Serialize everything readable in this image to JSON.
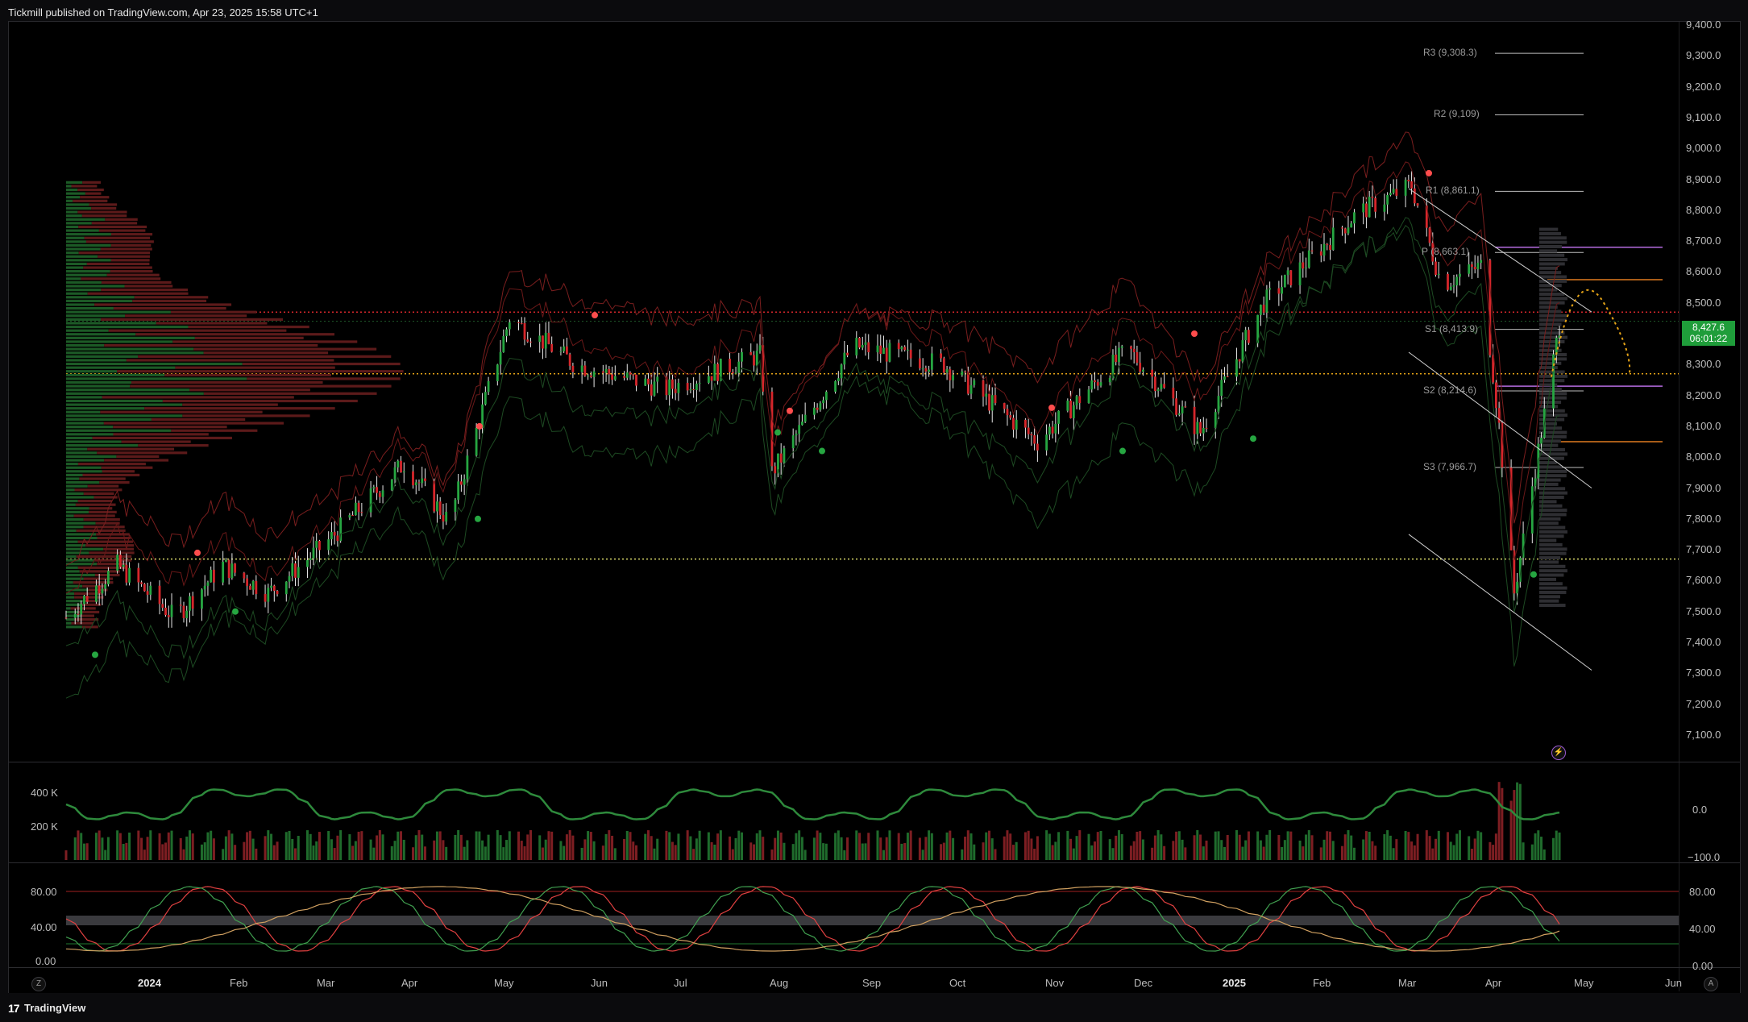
{
  "header": {
    "published_text": "Tickmill published on TradingView.com, Apr 23, 2025 15:58 UTC+1"
  },
  "footer": {
    "brand": "TradingView",
    "logo_icon": "tradingview-logo-icon"
  },
  "price_scale": {
    "labels": [
      "9,400.0",
      "9,300.0",
      "9,200.0",
      "9,100.0",
      "9,000.0",
      "8,900.0",
      "8,800.0",
      "8,700.0",
      "8,600.0",
      "8,500.0",
      "8,400.0",
      "8,300.0",
      "8,200.0",
      "8,100.0",
      "8,000.0",
      "7,900.0",
      "7,800.0",
      "7,700.0",
      "7,600.0",
      "7,500.0",
      "7,400.0",
      "7,300.0",
      "7,200.0",
      "7,100.0"
    ],
    "last_price": "8,427.6",
    "countdown": "06:01:22",
    "last_price_color": "#1f9d3a"
  },
  "pivots": [
    {
      "label": "R3 (9,308.3)",
      "value": 9308.3
    },
    {
      "label": "R2 (9,109)",
      "value": 9109
    },
    {
      "label": "R1 (8,861.1)",
      "value": 8861.1
    },
    {
      "label": "P (8,663.1)",
      "value": 8663.1
    },
    {
      "label": "S1 (8,413.9)",
      "value": 8413.9
    },
    {
      "label": "S2 (8,214.6)",
      "value": 8214.6
    },
    {
      "label": "S3 (7,966.7)",
      "value": 7966.7
    }
  ],
  "volume_pane": {
    "left_labels": [
      "400 K",
      "200 K"
    ],
    "right_labels": [
      "0.0",
      "−100.0"
    ]
  },
  "stoch_pane": {
    "left_labels": [
      "80.00",
      "40.00",
      "0.00"
    ],
    "right_labels": [
      "80.00",
      "40.00",
      "0.00"
    ]
  },
  "time_axis": {
    "labels": [
      {
        "text": "2024",
        "bold": true
      },
      {
        "text": "Feb",
        "bold": false
      },
      {
        "text": "Mar",
        "bold": false
      },
      {
        "text": "Apr",
        "bold": false
      },
      {
        "text": "May",
        "bold": false
      },
      {
        "text": "Jun",
        "bold": false
      },
      {
        "text": "Jul",
        "bold": false
      },
      {
        "text": "Aug",
        "bold": false
      },
      {
        "text": "Sep",
        "bold": false
      },
      {
        "text": "Oct",
        "bold": false
      },
      {
        "text": "Nov",
        "bold": false
      },
      {
        "text": "Dec",
        "bold": false
      },
      {
        "text": "2025",
        "bold": true
      },
      {
        "text": "Feb",
        "bold": false
      },
      {
        "text": "Mar",
        "bold": false
      },
      {
        "text": "Apr",
        "bold": false
      },
      {
        "text": "May",
        "bold": false
      },
      {
        "text": "Jun",
        "bold": false
      }
    ]
  },
  "buttons": {
    "zoom_left": "Z",
    "auto_scale": "A",
    "replay_icon": "lightning-icon"
  },
  "colors": {
    "up": "#26a641",
    "down": "#d6262b",
    "bg": "#000000",
    "pivot": "#cfcfcf",
    "dotted_orange": "#e6a417"
  },
  "chart_data": {
    "type": "candlestick",
    "x_range": [
      "2023-12-15",
      "2025-06-01"
    ],
    "y_range": [
      7050,
      9420
    ],
    "approx_closes": [
      {
        "date": "2023-12-15",
        "close": 7480
      },
      {
        "date": "2024-01-01",
        "close": 7650
      },
      {
        "date": "2024-01-20",
        "close": 7480
      },
      {
        "date": "2024-02-05",
        "close": 7650
      },
      {
        "date": "2024-02-20",
        "close": 7560
      },
      {
        "date": "2024-03-10",
        "close": 7720
      },
      {
        "date": "2024-04-05",
        "close": 7980
      },
      {
        "date": "2024-04-20",
        "close": 7790
      },
      {
        "date": "2024-05-10",
        "close": 8450
      },
      {
        "date": "2024-06-01",
        "close": 8300
      },
      {
        "date": "2024-07-01",
        "close": 8220
      },
      {
        "date": "2024-08-01",
        "close": 8330
      },
      {
        "date": "2024-08-05",
        "close": 7950
      },
      {
        "date": "2024-09-01",
        "close": 8360
      },
      {
        "date": "2024-10-01",
        "close": 8300
      },
      {
        "date": "2024-11-01",
        "close": 8050
      },
      {
        "date": "2024-12-01",
        "close": 8350
      },
      {
        "date": "2024-12-25",
        "close": 8080
      },
      {
        "date": "2025-01-15",
        "close": 8500
      },
      {
        "date": "2025-02-15",
        "close": 8790
      },
      {
        "date": "2025-03-05",
        "close": 8880
      },
      {
        "date": "2025-03-15",
        "close": 8560
      },
      {
        "date": "2025-03-28",
        "close": 8620
      },
      {
        "date": "2025-04-03",
        "close": 8100
      },
      {
        "date": "2025-04-08",
        "close": 7560
      },
      {
        "date": "2025-04-23",
        "close": 8427.6
      }
    ]
  }
}
